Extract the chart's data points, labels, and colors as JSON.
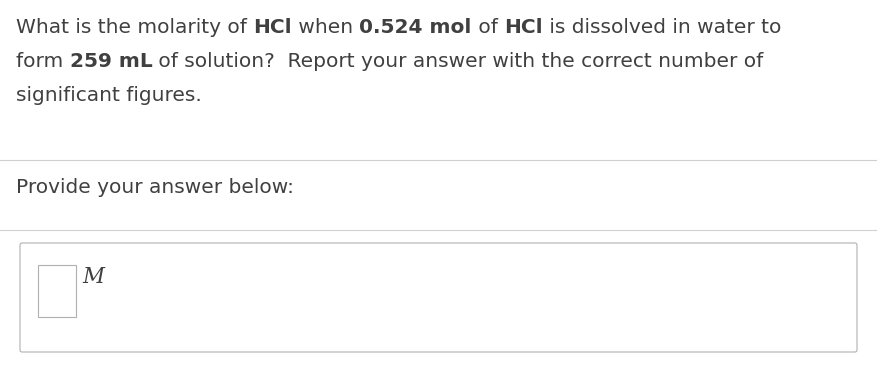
{
  "bg_color": "#ffffff",
  "text_color": "#404040",
  "separator_color": "#d0d0d0",
  "box_border_color": "#b0b0b0",
  "font_size": 14.5,
  "line1": [
    {
      "text": "What is the molarity of ",
      "bold": false
    },
    {
      "text": "HCl",
      "bold": true
    },
    {
      "text": " when ",
      "bold": false
    },
    {
      "text": "0.524 mol",
      "bold": true
    },
    {
      "text": " of ",
      "bold": false
    },
    {
      "text": "HCl",
      "bold": true
    },
    {
      "text": " is dissolved in water to",
      "bold": false
    }
  ],
  "line2": [
    {
      "text": "form ",
      "bold": false
    },
    {
      "text": "259 mL",
      "bold": true
    },
    {
      "text": " of solution?  Report your answer with the correct number of",
      "bold": false
    }
  ],
  "line3": [
    {
      "text": "significant figures.",
      "bold": false
    }
  ],
  "provide_text": "Provide your answer below:",
  "unit_label": "M"
}
